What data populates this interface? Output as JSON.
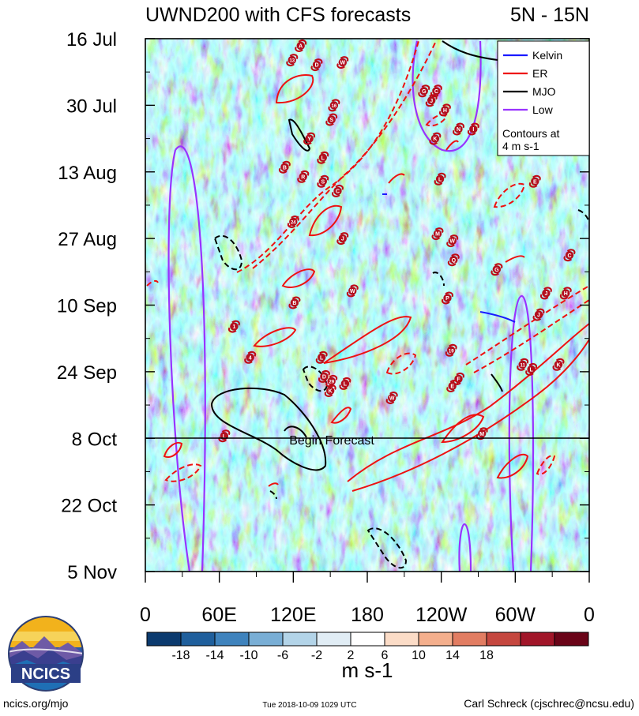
{
  "chart_data": {
    "type": "heatmap",
    "title_left": "UWND200 with CFS forecasts",
    "title_right": "5N - 15N",
    "y_tick_labels": [
      "16 Jul",
      "30 Jul",
      "13 Aug",
      "27 Aug",
      "10 Sep",
      "24 Sep",
      "8 Oct",
      "22 Oct",
      "5 Nov"
    ],
    "x_tick_labels": [
      "0",
      "60E",
      "120E",
      "180",
      "120W",
      "60W",
      "0"
    ],
    "x_range_deg": [
      0,
      360
    ],
    "date_range_days": [
      0,
      112
    ],
    "forecast_start_day": 84,
    "forecast_label": "Begin Forecast",
    "colorbar": {
      "ticks": [
        "-18",
        "-14",
        "-10",
        "-6",
        "-2",
        "2",
        "6",
        "10",
        "14",
        "18"
      ],
      "colors": [
        "#0b3a6e",
        "#1f5f9c",
        "#3f83bd",
        "#79aed5",
        "#b3d4e8",
        "#e1edf5",
        "#ffffff",
        "#fbdcc7",
        "#f4af8d",
        "#e27d62",
        "#c5473f",
        "#a11629",
        "#6a0418"
      ],
      "units": "m s-1"
    },
    "legend": {
      "items": [
        {
          "name": "Kelvin",
          "color": "#1a1aff"
        },
        {
          "name": "ER",
          "color": "#ee1111"
        },
        {
          "name": "MJO",
          "color": "#000000"
        },
        {
          "name": "Low",
          "color": "#9933ff"
        }
      ],
      "note_line1": "Contours at",
      "note_line2": "4 m s-1",
      "position": "top-right"
    },
    "storms": [
      {
        "label": "A",
        "lon": 126,
        "day": 1.5
      },
      {
        "label": "13",
        "lon": 119,
        "day": 4.5
      },
      {
        "label": "W",
        "lon": 160,
        "day": 5
      },
      {
        "label": "D",
        "lon": 139,
        "day": 5.5
      },
      {
        "label": "G",
        "lon": 226,
        "day": 11
      },
      {
        "label": "C",
        "lon": 236,
        "day": 11
      },
      {
        "label": "J",
        "lon": 232,
        "day": 13
      },
      {
        "label": "16",
        "lon": 153,
        "day": 14
      },
      {
        "label": "H",
        "lon": 243,
        "day": 15
      },
      {
        "label": "S",
        "lon": 151,
        "day": 17
      },
      {
        "label": "N",
        "lon": 254,
        "day": 19
      },
      {
        "label": "I",
        "lon": 266,
        "day": 19
      },
      {
        "label": "K",
        "lon": 235,
        "day": 21
      },
      {
        "label": "Y",
        "lon": 133,
        "day": 21
      },
      {
        "label": "L",
        "lon": 144,
        "day": 25
      },
      {
        "label": "B",
        "lon": 113,
        "day": 27
      },
      {
        "label": "R",
        "lon": 128,
        "day": 29
      },
      {
        "label": "S",
        "lon": 144,
        "day": 30
      },
      {
        "label": "L",
        "lon": 239,
        "day": 29.5
      },
      {
        "label": "E",
        "lon": 316,
        "day": 30
      },
      {
        "label": "C",
        "lon": 156,
        "day": 32
      },
      {
        "label": "24",
        "lon": 120,
        "day": 38.5
      },
      {
        "label": "M",
        "lon": 237,
        "day": 41
      },
      {
        "label": "J",
        "lon": 160,
        "day": 42
      },
      {
        "label": "W",
        "lon": 249,
        "day": 42.5
      },
      {
        "label": "Q",
        "lon": 250,
        "day": 46.5
      },
      {
        "label": "G",
        "lon": 285,
        "day": 48.5
      },
      {
        "label": "C",
        "lon": 344,
        "day": 45.5
      },
      {
        "label": "W",
        "lon": 168,
        "day": 53
      },
      {
        "label": "J",
        "lon": 325,
        "day": 53.5
      },
      {
        "label": "H",
        "lon": 341,
        "day": 53.5
      },
      {
        "label": "P",
        "lon": 245,
        "day": 54.5
      },
      {
        "label": "B",
        "lon": 121,
        "day": 55.5
      },
      {
        "label": "J",
        "lon": 319,
        "day": 58
      },
      {
        "label": "1",
        "lon": 72,
        "day": 60.5
      },
      {
        "label": "19",
        "lon": 248,
        "day": 65.5
      },
      {
        "label": "4",
        "lon": 85,
        "day": 67
      },
      {
        "label": "L",
        "lon": 143,
        "day": 67
      },
      {
        "label": "11",
        "lon": 306,
        "day": 68.5
      },
      {
        "label": "K",
        "lon": 335,
        "day": 68.5
      },
      {
        "label": "L",
        "lon": 313,
        "day": 69.5
      },
      {
        "label": "D",
        "lon": 145,
        "day": 71
      },
      {
        "label": "29",
        "lon": 151,
        "day": 72
      },
      {
        "label": "L",
        "lon": 162,
        "day": 72.5
      },
      {
        "label": "F",
        "lon": 254,
        "day": 71.5
      },
      {
        "label": "E",
        "lon": 249,
        "day": 73
      },
      {
        "label": "K",
        "lon": 150,
        "day": 74
      },
      {
        "label": "W",
        "lon": 200,
        "day": 75.5
      },
      {
        "label": "M",
        "lon": 273,
        "day": 83
      },
      {
        "label": "L",
        "lon": 64,
        "day": 83.5
      }
    ]
  }
}
